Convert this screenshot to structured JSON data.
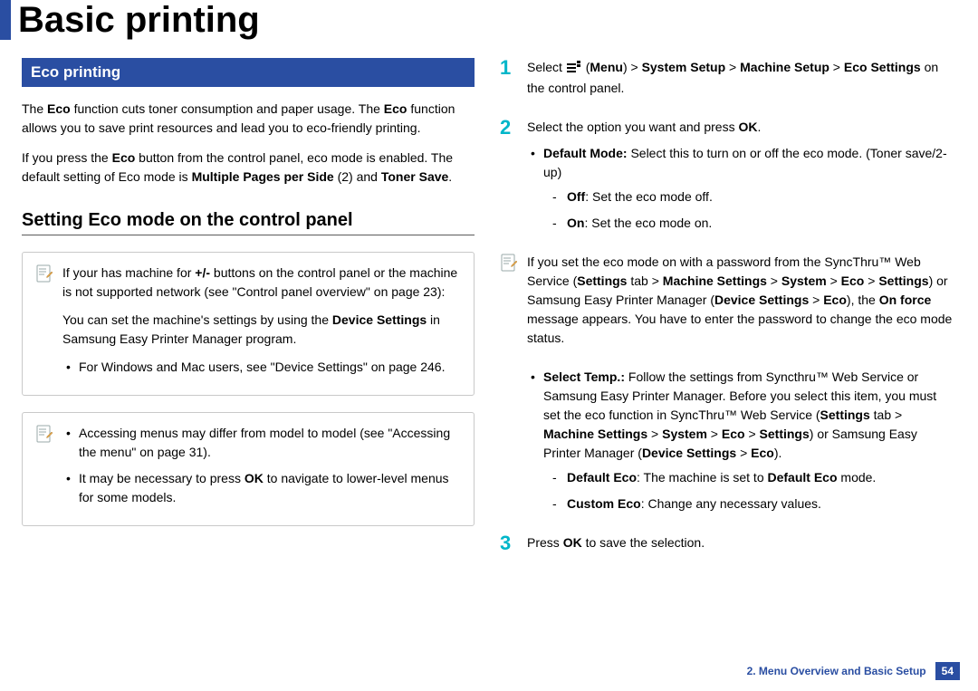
{
  "colors": {
    "brand_blue": "#2a4ea2",
    "accent_cyan": "#00b6c9",
    "text": "#000000",
    "border_gray": "#c9c9c9",
    "rule_gray": "#5a5a5a",
    "bg": "#ffffff"
  },
  "typography": {
    "title_fontsize": 40,
    "section_band_fontsize": 17,
    "subheading_fontsize": 20,
    "body_fontsize": 14,
    "footer_fontsize": 12,
    "step_number_fontsize": 22
  },
  "icon_names": {
    "note": "note-pencil-icon",
    "menu": "menu-glyph-icon"
  },
  "title": "Basic printing",
  "left": {
    "section_band": "Eco printing",
    "intro_html": "The <b>Eco</b> function cuts toner consumption and paper usage. The <b>Eco</b> function allows you to save print resources and lead you to eco-friendly printing.",
    "intro2_html": "If you press the <b>Eco</b> button from the control panel, eco mode is enabled. The default setting of Eco mode is <b>Multiple Pages per Side</b> (2) and <b>Toner Save</b>.",
    "subheading": "Setting Eco mode on the control panel",
    "note1": {
      "p1_html": "If your has machine for <b>+/-</b> buttons on the control panel or the machine is not supported network (see \"Control panel overview\" on page 23):",
      "p2_html": "You can set the machine's settings by using the <b>Device Settings</b> in Samsung Easy Printer Manager program.",
      "bullet1": "For Windows and Mac users, see \"Device Settings\" on page 246."
    },
    "note2": {
      "bullet1": "Accessing menus may differ from model to model (see \"Accessing the menu\" on page 31).",
      "bullet2_html": "It may be necessary to press <b>OK</b> to navigate to lower-level menus for some models."
    }
  },
  "right": {
    "step1": {
      "num": "1",
      "text_html": "Select  (<b>Menu</b>) > <b>System Setup</b> > <b>Machine Setup</b> > <b>Eco Settings</b> on the control panel."
    },
    "step2": {
      "num": "2",
      "intro_html": "Select the option you want and press <b>OK</b>.",
      "bullet_default_html": "<b>Default Mode:</b> Select this to turn on or off the eco mode. (Toner save/2-up)",
      "dash_off_html": "<b>Off</b>: Set the eco mode off.",
      "dash_on_html": "<b>On</b>: Set the eco mode on."
    },
    "note_html": "If you set the eco mode on with a password from the SyncThru™ Web Service (<b>Settings</b> tab > <b>Machine Settings</b> > <b>System</b> > <b>Eco</b> > <b>Settings</b>) or Samsung Easy Printer Manager (<b>Device Settings</b> > <b>Eco</b>), the <b>On force</b> message appears. You have to enter the password to change the eco mode status.",
    "step2b": {
      "bullet_select_temp_html": "<b>Select Temp.:</b> Follow the settings from Syncthru™ Web Service or Samsung Easy Printer Manager. Before you select this item, you must set the eco function in SyncThru™ Web Service (<b>Settings</b> tab > <b>Machine Settings</b> > <b>System</b> > <b>Eco</b> > <b>Settings</b>) or Samsung Easy Printer Manager (<b>Device Settings</b> > <b>Eco</b>).",
      "dash_default_eco_html": "<b>Default Eco</b>: The machine is set to <b>Default Eco</b> mode.",
      "dash_custom_eco_html": "<b>Custom Eco</b>: Change any necessary values."
    },
    "step3": {
      "num": "3",
      "text_html": "Press <b>OK</b> to save the selection."
    }
  },
  "footer": {
    "chapter": "2. Menu Overview and Basic Setup",
    "page": "54"
  }
}
